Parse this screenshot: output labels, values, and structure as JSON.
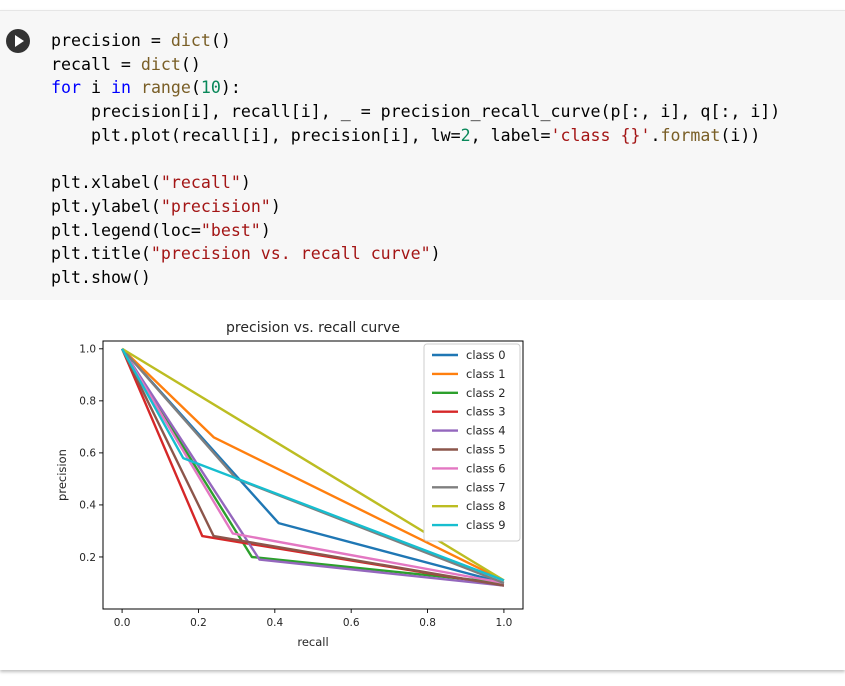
{
  "code_cell": {
    "lines": [
      [
        {
          "t": "precision = "
        },
        {
          "t": "dict",
          "c": "fn"
        },
        {
          "t": "()"
        }
      ],
      [
        {
          "t": "recall = "
        },
        {
          "t": "dict",
          "c": "fn"
        },
        {
          "t": "()"
        }
      ],
      [
        {
          "t": "for",
          "c": "kw"
        },
        {
          "t": " i "
        },
        {
          "t": "in",
          "c": "kw"
        },
        {
          "t": " "
        },
        {
          "t": "range",
          "c": "fn"
        },
        {
          "t": "("
        },
        {
          "t": "10",
          "c": "num"
        },
        {
          "t": "):"
        }
      ],
      [
        {
          "t": "    precision[i], recall[i], _ = precision_recall_curve(p[:, i], q[:, i])"
        }
      ],
      [
        {
          "t": "    plt.plot(recall[i], precision[i], lw="
        },
        {
          "t": "2",
          "c": "num"
        },
        {
          "t": ", label="
        },
        {
          "t": "'class {}'",
          "c": "str"
        },
        {
          "t": "."
        },
        {
          "t": "format",
          "c": "fn"
        },
        {
          "t": "(i))"
        }
      ],
      [
        {
          "t": ""
        }
      ],
      [
        {
          "t": "plt.xlabel("
        },
        {
          "t": "\"recall\"",
          "c": "str"
        },
        {
          "t": ")"
        }
      ],
      [
        {
          "t": "plt.ylabel("
        },
        {
          "t": "\"precision\"",
          "c": "str"
        },
        {
          "t": ")"
        }
      ],
      [
        {
          "t": "plt.legend(loc="
        },
        {
          "t": "\"best\"",
          "c": "str"
        },
        {
          "t": ")"
        }
      ],
      [
        {
          "t": "plt.title("
        },
        {
          "t": "\"precision vs. recall curve\"",
          "c": "str"
        },
        {
          "t": ")"
        }
      ],
      [
        {
          "t": "plt.show()"
        }
      ]
    ]
  },
  "chart_data": {
    "type": "line",
    "title": "precision vs. recall curve",
    "xlabel": "recall",
    "ylabel": "precision",
    "xlim": [
      -0.05,
      1.05
    ],
    "ylim": [
      0.0,
      1.03
    ],
    "xticks": [
      "0.0",
      "0.2",
      "0.4",
      "0.6",
      "0.8",
      "1.0"
    ],
    "yticks": [
      "0.2",
      "0.4",
      "0.6",
      "0.8",
      "1.0"
    ],
    "legend_position": "top-right",
    "grid": false,
    "series": [
      {
        "name": "class 0",
        "color": "#1f77b4",
        "x": [
          0.0,
          0.41,
          1.0
        ],
        "y": [
          1.0,
          0.33,
          0.1
        ]
      },
      {
        "name": "class 1",
        "color": "#ff7f0e",
        "x": [
          0.0,
          0.24,
          1.0
        ],
        "y": [
          1.0,
          0.66,
          0.11
        ]
      },
      {
        "name": "class 2",
        "color": "#2ca02c",
        "x": [
          0.0,
          0.34,
          1.0
        ],
        "y": [
          1.0,
          0.2,
          0.1
        ]
      },
      {
        "name": "class 3",
        "color": "#d62728",
        "x": [
          0.0,
          0.21,
          1.0
        ],
        "y": [
          1.0,
          0.28,
          0.09
        ]
      },
      {
        "name": "class 4",
        "color": "#9467bd",
        "x": [
          0.0,
          0.36,
          1.0
        ],
        "y": [
          1.0,
          0.19,
          0.09
        ]
      },
      {
        "name": "class 5",
        "color": "#8c564b",
        "x": [
          0.0,
          0.24,
          1.0
        ],
        "y": [
          1.0,
          0.28,
          0.09
        ]
      },
      {
        "name": "class 6",
        "color": "#e377c2",
        "x": [
          0.0,
          0.29,
          1.0
        ],
        "y": [
          1.0,
          0.29,
          0.1
        ]
      },
      {
        "name": "class 7",
        "color": "#7f7f7f",
        "x": [
          0.0,
          0.3,
          1.0
        ],
        "y": [
          1.0,
          0.5,
          0.1
        ]
      },
      {
        "name": "class 8",
        "color": "#bcbd22",
        "x": [
          0.0,
          1.0
        ],
        "y": [
          1.0,
          0.11
        ]
      },
      {
        "name": "class 9",
        "color": "#17becf",
        "x": [
          0.0,
          0.16,
          1.0
        ],
        "y": [
          1.0,
          0.58,
          0.11
        ]
      }
    ]
  }
}
